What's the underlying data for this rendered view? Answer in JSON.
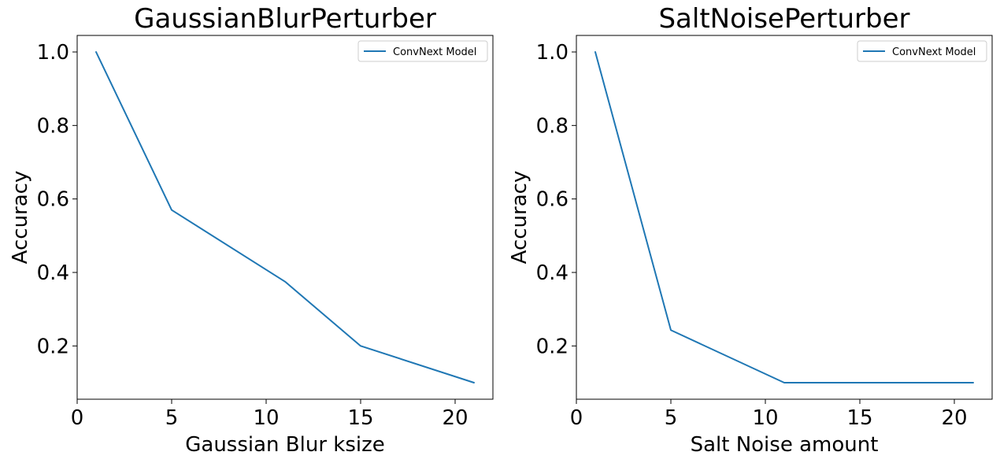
{
  "chart_data": [
    {
      "type": "line",
      "title": "GaussianBlurPerturber",
      "xlabel": "Gaussian Blur ksize",
      "ylabel": "Accuracy",
      "xlim": [
        0,
        22
      ],
      "ylim": [
        0.055,
        1.045
      ],
      "xticks": [
        0,
        5,
        10,
        15,
        20
      ],
      "yticks": [
        0.2,
        0.4,
        0.6,
        0.8,
        1.0
      ],
      "grid": false,
      "legend_position": "top-right",
      "series": [
        {
          "name": "ConvNext Model",
          "color": "#1f77b4",
          "x": [
            1,
            5,
            11,
            15,
            21
          ],
          "y": [
            1.0,
            0.57,
            0.375,
            0.2,
            0.1
          ]
        }
      ]
    },
    {
      "type": "line",
      "title": "SaltNoisePerturber",
      "xlabel": "Salt Noise amount",
      "ylabel": "Accuracy",
      "xlim": [
        0,
        22
      ],
      "ylim": [
        0.055,
        1.045
      ],
      "xticks": [
        0,
        5,
        10,
        15,
        20
      ],
      "yticks": [
        0.2,
        0.4,
        0.6,
        0.8,
        1.0
      ],
      "grid": false,
      "legend_position": "top-right",
      "series": [
        {
          "name": "ConvNext Model",
          "color": "#1f77b4",
          "x": [
            1,
            5,
            11,
            15,
            21
          ],
          "y": [
            1.0,
            0.243,
            0.1,
            0.1,
            0.1
          ]
        }
      ]
    }
  ]
}
